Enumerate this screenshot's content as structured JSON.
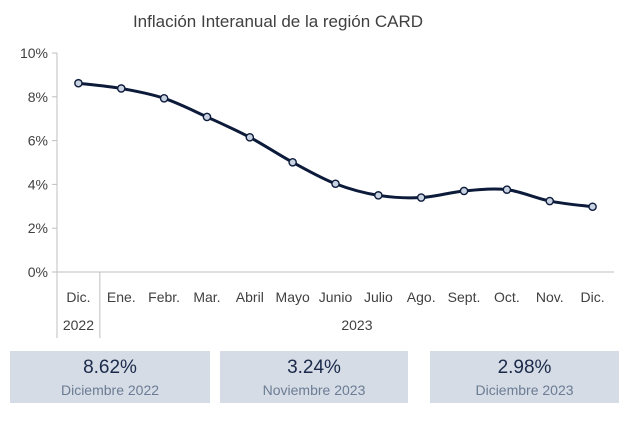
{
  "chart_data": {
    "type": "line",
    "title": "Inflación Interanual de la región CARD",
    "xlabel": "",
    "ylabel": "",
    "ylim": [
      0,
      10
    ],
    "y_ticks": [
      "0%",
      "2%",
      "4%",
      "6%",
      "8%",
      "10%"
    ],
    "categories": [
      "Dic.",
      "Ene.",
      "Febr.",
      "Mar.",
      "Abril",
      "Mayo",
      "Junio",
      "Julio",
      "Ago.",
      "Sept.",
      "Oct.",
      "Nov.",
      "Dic."
    ],
    "year_groups": [
      {
        "label": "2022",
        "count": 1
      },
      {
        "label": "2023",
        "count": 12
      }
    ],
    "series": [
      {
        "values": [
          8.62,
          8.38,
          7.93,
          7.08,
          6.15,
          5.01,
          4.03,
          3.5,
          3.4,
          3.7,
          3.76,
          3.24,
          2.98
        ]
      }
    ],
    "grid": false,
    "line_color": "#0d1b3a",
    "marker_fill": "#c9d3e2"
  },
  "stats": [
    {
      "value": "8.62%",
      "label": "Diciembre 2022"
    },
    {
      "value": "3.24%",
      "label": "Noviembre 2023"
    },
    {
      "value": "2.98%",
      "label": "Diciembre 2023"
    }
  ]
}
